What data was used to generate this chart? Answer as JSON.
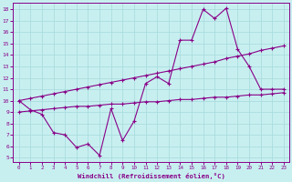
{
  "xlabel": "Windchill (Refroidissement éolien,°C)",
  "bg_color": "#c8eff0",
  "line_color": "#880088",
  "grid_color": "#aadddd",
  "xlim_min": -0.5,
  "xlim_max": 23.5,
  "ylim_min": 4.6,
  "ylim_max": 18.6,
  "xticks": [
    0,
    1,
    2,
    3,
    4,
    5,
    6,
    7,
    8,
    9,
    10,
    11,
    12,
    13,
    14,
    15,
    16,
    17,
    18,
    19,
    20,
    21,
    22,
    23
  ],
  "yticks": [
    5,
    6,
    7,
    8,
    9,
    10,
    11,
    12,
    13,
    14,
    15,
    16,
    17,
    18
  ],
  "line_wavy_x": [
    0,
    1,
    2,
    3,
    4,
    5,
    6,
    7,
    8,
    9,
    10,
    11,
    12,
    13,
    14,
    15,
    16,
    17,
    18,
    19,
    20,
    21,
    22,
    23
  ],
  "line_wavy_y": [
    10.0,
    9.2,
    8.8,
    7.2,
    7.0,
    5.9,
    6.2,
    5.2,
    9.3,
    6.5,
    8.2,
    11.5,
    12.1,
    11.5,
    15.3,
    15.3,
    18.0,
    17.2,
    18.1,
    14.5,
    13.0,
    11.0,
    11.0,
    11.0
  ],
  "line_high_x": [
    0,
    1,
    2,
    3,
    4,
    5,
    6,
    7,
    8,
    9,
    10,
    11,
    12,
    13,
    14,
    15,
    16,
    17,
    18,
    19,
    20,
    21,
    22,
    23
  ],
  "line_high_y": [
    10.0,
    10.2,
    10.4,
    10.6,
    10.8,
    11.0,
    11.2,
    11.4,
    11.6,
    11.8,
    12.0,
    12.2,
    12.4,
    12.6,
    12.8,
    13.0,
    13.2,
    13.4,
    13.7,
    13.9,
    14.1,
    14.4,
    14.6,
    14.8
  ],
  "line_low_x": [
    0,
    1,
    2,
    3,
    4,
    5,
    6,
    7,
    8,
    9,
    10,
    11,
    12,
    13,
    14,
    15,
    16,
    17,
    18,
    19,
    20,
    21,
    22,
    23
  ],
  "line_low_y": [
    9.0,
    9.1,
    9.2,
    9.3,
    9.4,
    9.5,
    9.5,
    9.6,
    9.7,
    9.7,
    9.8,
    9.9,
    9.9,
    10.0,
    10.1,
    10.1,
    10.2,
    10.3,
    10.3,
    10.4,
    10.5,
    10.5,
    10.6,
    10.7
  ]
}
